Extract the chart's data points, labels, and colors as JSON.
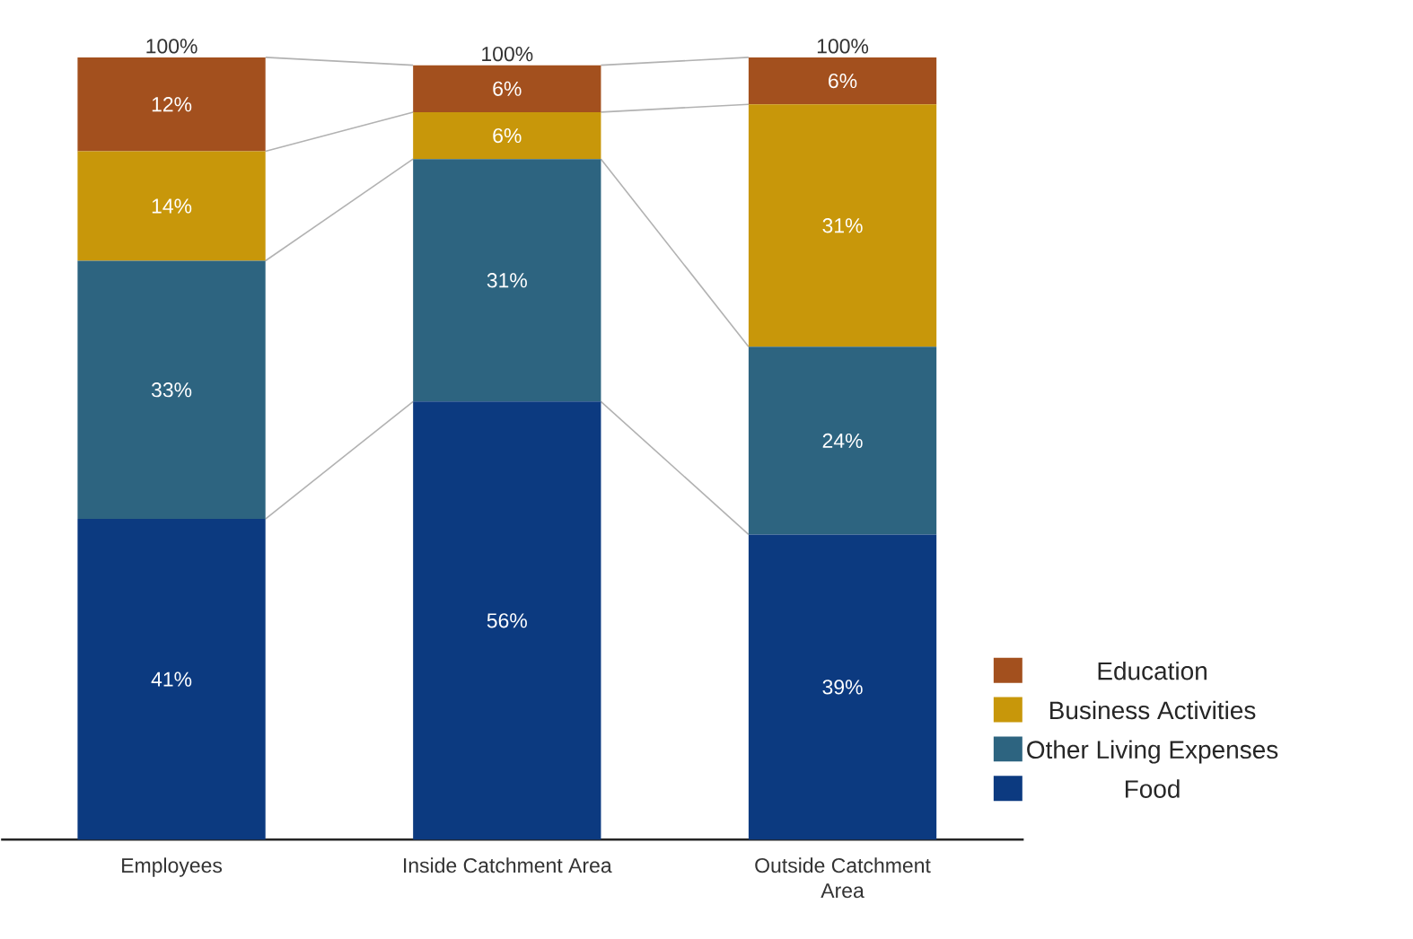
{
  "chart_data": {
    "type": "bar",
    "stacked": true,
    "categories": [
      "Employees",
      "Inside Catchment Area",
      "Outside Catchment Area"
    ],
    "series": [
      {
        "name": "Food",
        "color": "#0c3a80",
        "values": [
          41,
          56,
          39
        ],
        "value_labels": [
          "41%",
          "56%",
          "39%"
        ]
      },
      {
        "name": "Other Living Expenses",
        "color": "#2d6480",
        "values": [
          33,
          31,
          24
        ],
        "value_labels": [
          "33%",
          "31%",
          "24%"
        ]
      },
      {
        "name": "Business Activities",
        "color": "#c8970a",
        "values": [
          14,
          6,
          31
        ],
        "value_labels": [
          "14%",
          "6%",
          "31%"
        ]
      },
      {
        "name": "Education",
        "color": "#a3501e",
        "values": [
          12,
          6,
          6
        ],
        "value_labels": [
          "12%",
          "6%",
          "6%"
        ]
      }
    ],
    "totals": [
      "100%",
      "100%",
      "100%"
    ],
    "legend": "right"
  }
}
